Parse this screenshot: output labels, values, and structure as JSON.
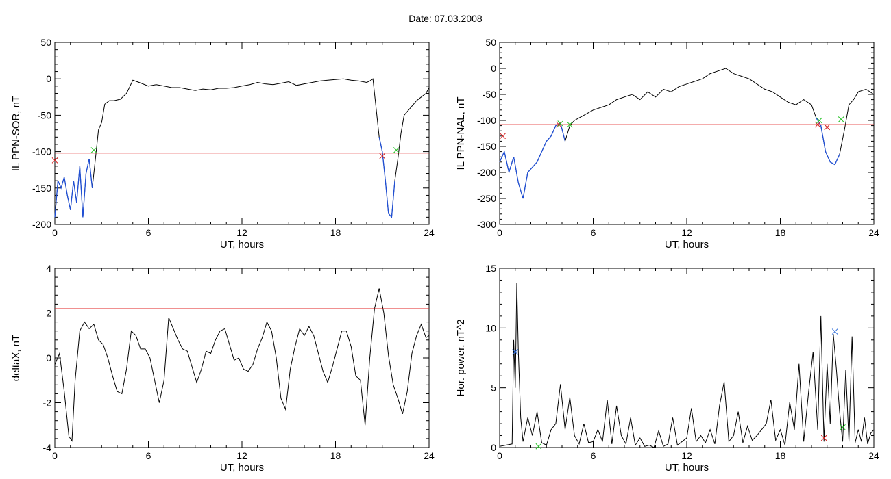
{
  "header": {
    "date_label": "Date:  07.03.2008"
  },
  "colors": {
    "data_line": "#000000",
    "highlight": "#1f4fd6",
    "threshold": "#e02020",
    "start_marker": "#d42020",
    "end_marker": "#20c020",
    "peak_marker": "#2a6ad8"
  },
  "chart_data": [
    {
      "id": "panel-ppn-sor",
      "type": "line",
      "xlabel": "UT, hours",
      "ylabel": "IL PPN-SOR, nT",
      "xlim": [
        0,
        24
      ],
      "ylim": [
        -200,
        50
      ],
      "xticks": [
        0,
        6,
        12,
        18,
        24
      ],
      "yticks": [
        50,
        0,
        -50,
        -100,
        -150,
        -200
      ],
      "threshold": -102,
      "series": [
        {
          "x": [
            0,
            0.2,
            0.4,
            0.6,
            0.8,
            1.0,
            1.2,
            1.4,
            1.6,
            1.8,
            2.0,
            2.2,
            2.4,
            2.6,
            2.8,
            3.0,
            3.2,
            3.5,
            3.8,
            4.2,
            4.6,
            5.0,
            5.4,
            6.0,
            6.5,
            7,
            7.5,
            8,
            8.5,
            9,
            9.5,
            10,
            10.5,
            11,
            11.5,
            12,
            12.5,
            13,
            13.5,
            14,
            14.5,
            15,
            15.5,
            16,
            16.5,
            17,
            17.5,
            18,
            18.5,
            19,
            19.5,
            20,
            20.2,
            20.4,
            20.6,
            20.8,
            21.0,
            21.2,
            21.4,
            21.6,
            21.8,
            22.0,
            22.2,
            22.4,
            22.6,
            22.8,
            23,
            23.2,
            23.5,
            23.8,
            24
          ],
          "y": [
            -190,
            -140,
            -150,
            -135,
            -160,
            -180,
            -140,
            -170,
            -120,
            -190,
            -130,
            -110,
            -150,
            -110,
            -70,
            -60,
            -35,
            -30,
            -30,
            -28,
            -20,
            -2,
            -5,
            -10,
            -8,
            -10,
            -12,
            -12,
            -14,
            -16,
            -14,
            -15,
            -13,
            -13,
            -12,
            -10,
            -8,
            -5,
            -7,
            -8,
            -6,
            -4,
            -9,
            -7,
            -5,
            -3,
            -2,
            -1,
            0,
            -2,
            -3,
            -5,
            -3,
            0,
            -40,
            -80,
            -100,
            -140,
            -185,
            -190,
            -140,
            -110,
            -75,
            -50,
            -45,
            -40,
            -35,
            -30,
            -25,
            -20,
            -12
          ]
        }
      ],
      "highlight_intervals": [
        [
          0,
          2.4
        ],
        [
          20.8,
          21.8
        ]
      ],
      "markers": [
        {
          "x": 0.0,
          "y": -112,
          "symbol": "x",
          "role": "start"
        },
        {
          "x": 2.5,
          "y": -98,
          "symbol": "x",
          "role": "end"
        },
        {
          "x": 21.0,
          "y": -106,
          "symbol": "x",
          "role": "start"
        },
        {
          "x": 21.9,
          "y": -98,
          "symbol": "x",
          "role": "end"
        }
      ]
    },
    {
      "id": "panel-ppn-nal",
      "type": "line",
      "xlabel": "UT, hours",
      "ylabel": "IL PPN-NAL, nT",
      "xlim": [
        0,
        24
      ],
      "ylim": [
        -300,
        50
      ],
      "xticks": [
        0,
        6,
        12,
        18,
        24
      ],
      "yticks": [
        50,
        0,
        -50,
        -100,
        -150,
        -200,
        -250,
        -300
      ],
      "threshold": -108,
      "series": [
        {
          "x": [
            0,
            0.3,
            0.6,
            0.9,
            1.2,
            1.5,
            1.8,
            2.1,
            2.4,
            2.7,
            3.0,
            3.3,
            3.6,
            3.9,
            4.2,
            4.5,
            4.8,
            5.1,
            5.4,
            6,
            6.5,
            7,
            7.5,
            8,
            8.5,
            9,
            9.5,
            10,
            10.5,
            11,
            11.5,
            12,
            12.5,
            13,
            13.5,
            14,
            14.5,
            15,
            15.5,
            16,
            16.5,
            17,
            17.5,
            18,
            18.5,
            19,
            19.5,
            20,
            20.3,
            20.6,
            20.9,
            21.2,
            21.5,
            21.8,
            22.1,
            22.4,
            22.7,
            23,
            23.5,
            24
          ],
          "y": [
            -180,
            -160,
            -200,
            -170,
            -220,
            -250,
            -200,
            -190,
            -180,
            -160,
            -140,
            -130,
            -110,
            -105,
            -140,
            -110,
            -100,
            -95,
            -90,
            -80,
            -75,
            -70,
            -60,
            -55,
            -50,
            -60,
            -45,
            -55,
            -40,
            -45,
            -35,
            -30,
            -25,
            -20,
            -10,
            -5,
            0,
            -10,
            -15,
            -20,
            -30,
            -40,
            -45,
            -55,
            -65,
            -70,
            -60,
            -70,
            -95,
            -110,
            -160,
            -180,
            -185,
            -165,
            -120,
            -70,
            -60,
            -45,
            -40,
            -50
          ]
        }
      ],
      "highlight_intervals": [
        [
          0,
          4.3
        ],
        [
          20.3,
          21.8
        ]
      ],
      "markers": [
        {
          "x": 0.2,
          "y": -130,
          "symbol": "x",
          "role": "start"
        },
        {
          "x": 3.8,
          "y": -108,
          "symbol": "x",
          "role": "start"
        },
        {
          "x": 3.9,
          "y": -106,
          "symbol": "x",
          "role": "end"
        },
        {
          "x": 4.5,
          "y": -108,
          "symbol": "x",
          "role": "end"
        },
        {
          "x": 20.4,
          "y": -108,
          "symbol": "x",
          "role": "start"
        },
        {
          "x": 20.5,
          "y": -100,
          "symbol": "x",
          "role": "end"
        },
        {
          "x": 21.0,
          "y": -113,
          "symbol": "x",
          "role": "start"
        },
        {
          "x": 21.9,
          "y": -98,
          "symbol": "x",
          "role": "end"
        }
      ]
    },
    {
      "id": "panel-deltax",
      "type": "line",
      "xlabel": "UT, hours",
      "ylabel": "deltaX, nT",
      "xlim": [
        0,
        24
      ],
      "ylim": [
        -4,
        4
      ],
      "xticks": [
        0,
        6,
        12,
        18,
        24
      ],
      "yticks": [
        4,
        2,
        0,
        -2,
        -4
      ],
      "threshold": 2.2,
      "series": [
        {
          "x": [
            0,
            0.3,
            0.6,
            0.9,
            1.1,
            1.3,
            1.6,
            1.9,
            2.2,
            2.5,
            2.8,
            3.1,
            3.4,
            3.7,
            4.0,
            4.3,
            4.6,
            4.9,
            5.2,
            5.5,
            5.8,
            6.1,
            6.4,
            6.7,
            7.0,
            7.3,
            7.6,
            7.9,
            8.2,
            8.5,
            8.8,
            9.1,
            9.4,
            9.7,
            10.0,
            10.3,
            10.6,
            10.9,
            11.2,
            11.5,
            11.8,
            12.1,
            12.4,
            12.7,
            13.0,
            13.3,
            13.6,
            13.9,
            14.2,
            14.5,
            14.8,
            15.1,
            15.4,
            15.7,
            16.0,
            16.3,
            16.6,
            16.9,
            17.2,
            17.5,
            17.8,
            18.1,
            18.4,
            18.7,
            19.0,
            19.3,
            19.6,
            19.9,
            20.2,
            20.5,
            20.8,
            21.1,
            21.4,
            21.7,
            22.0,
            22.3,
            22.6,
            22.9,
            23.2,
            23.5,
            23.8,
            24
          ],
          "y": [
            -0.3,
            0.2,
            -1.5,
            -3.5,
            -3.7,
            -1.0,
            1.2,
            1.6,
            1.3,
            1.5,
            0.8,
            0.6,
            0.0,
            -0.8,
            -1.5,
            -1.6,
            -0.5,
            1.2,
            1.0,
            0.4,
            0.4,
            0.0,
            -1.0,
            -2.0,
            -1.0,
            1.8,
            1.3,
            0.8,
            0.4,
            0.3,
            -0.4,
            -1.1,
            -0.5,
            0.3,
            0.2,
            0.8,
            1.2,
            1.3,
            0.6,
            -0.1,
            0.0,
            -0.5,
            -0.6,
            -0.3,
            0.4,
            0.9,
            1.6,
            1.2,
            0.0,
            -1.8,
            -2.3,
            -0.5,
            0.5,
            1.3,
            1.0,
            1.4,
            1.0,
            0.2,
            -0.6,
            -1.1,
            -0.4,
            0.4,
            1.2,
            1.2,
            0.5,
            -0.8,
            -1.0,
            -3.0,
            0.0,
            2.2,
            3.1,
            2.0,
            0.1,
            -1.2,
            -1.8,
            -2.5,
            -1.5,
            0.2,
            1.0,
            1.5,
            0.9,
            1.0
          ]
        }
      ]
    },
    {
      "id": "panel-hor-power",
      "type": "line",
      "xlabel": "UT, hours",
      "ylabel": "Hor. power, nT^2",
      "xlim": [
        0,
        24
      ],
      "ylim": [
        0,
        15
      ],
      "xticks": [
        0,
        6,
        12,
        18,
        24
      ],
      "yticks": [
        15,
        10,
        5,
        0
      ],
      "series": [
        {
          "x": [
            0,
            0.4,
            0.8,
            0.9,
            1.0,
            1.1,
            1.2,
            1.35,
            1.5,
            1.8,
            2.1,
            2.4,
            2.7,
            3.0,
            3.3,
            3.6,
            3.9,
            4.2,
            4.5,
            4.8,
            5.1,
            5.4,
            5.7,
            6.0,
            6.3,
            6.6,
            6.9,
            7.2,
            7.5,
            7.8,
            8.1,
            8.4,
            8.7,
            9.0,
            9.3,
            9.6,
            9.9,
            10.2,
            10.5,
            10.8,
            11.1,
            11.4,
            11.7,
            12.0,
            12.3,
            12.6,
            12.9,
            13.2,
            13.5,
            13.8,
            14.1,
            14.4,
            14.7,
            15.0,
            15.3,
            15.6,
            15.9,
            16.2,
            16.5,
            16.8,
            17.1,
            17.4,
            17.7,
            18.0,
            18.3,
            18.6,
            18.9,
            19.2,
            19.5,
            19.8,
            20.1,
            20.4,
            20.6,
            20.8,
            21.0,
            21.2,
            21.4,
            21.6,
            21.8,
            22.0,
            22.2,
            22.4,
            22.6,
            22.8,
            23.0,
            23.2,
            23.4,
            23.6,
            23.8,
            24
          ],
          "y": [
            0.1,
            0.2,
            0.3,
            9.0,
            5.0,
            13.8,
            8.0,
            2.5,
            0.5,
            2.5,
            1.0,
            3.0,
            0.4,
            0.2,
            1.5,
            2.0,
            5.3,
            1.5,
            4.2,
            1.0,
            0.3,
            2.0,
            0.4,
            0.5,
            1.5,
            0.5,
            4.0,
            0.3,
            3.5,
            1.0,
            0.3,
            2.5,
            0.2,
            0.8,
            0.1,
            0.2,
            0.0,
            1.4,
            0.1,
            0.3,
            2.5,
            0.2,
            0.5,
            0.8,
            3.3,
            0.5,
            1.0,
            0.4,
            1.5,
            0.3,
            3.5,
            5.5,
            0.5,
            1.0,
            3.0,
            0.4,
            1.8,
            0.6,
            1.0,
            1.5,
            2.0,
            4.0,
            0.6,
            1.5,
            0.2,
            3.8,
            1.5,
            7.0,
            0.5,
            4.5,
            8.0,
            1.5,
            11.0,
            0.5,
            7.0,
            2.0,
            9.5,
            6.5,
            3.0,
            0.5,
            6.5,
            0.5,
            9.3,
            0.4,
            1.5,
            0.5,
            2.5,
            0.3,
            1.2,
            1.5
          ]
        }
      ],
      "markers": [
        {
          "x": 1.0,
          "y": 8.0,
          "symbol": "x",
          "role": "peak"
        },
        {
          "x": 2.5,
          "y": 0.1,
          "symbol": "x",
          "role": "end"
        },
        {
          "x": 20.8,
          "y": 0.8,
          "symbol": "x",
          "role": "start"
        },
        {
          "x": 21.5,
          "y": 9.7,
          "symbol": "x",
          "role": "peak"
        },
        {
          "x": 22.0,
          "y": 1.7,
          "symbol": "x",
          "role": "end"
        }
      ]
    }
  ]
}
